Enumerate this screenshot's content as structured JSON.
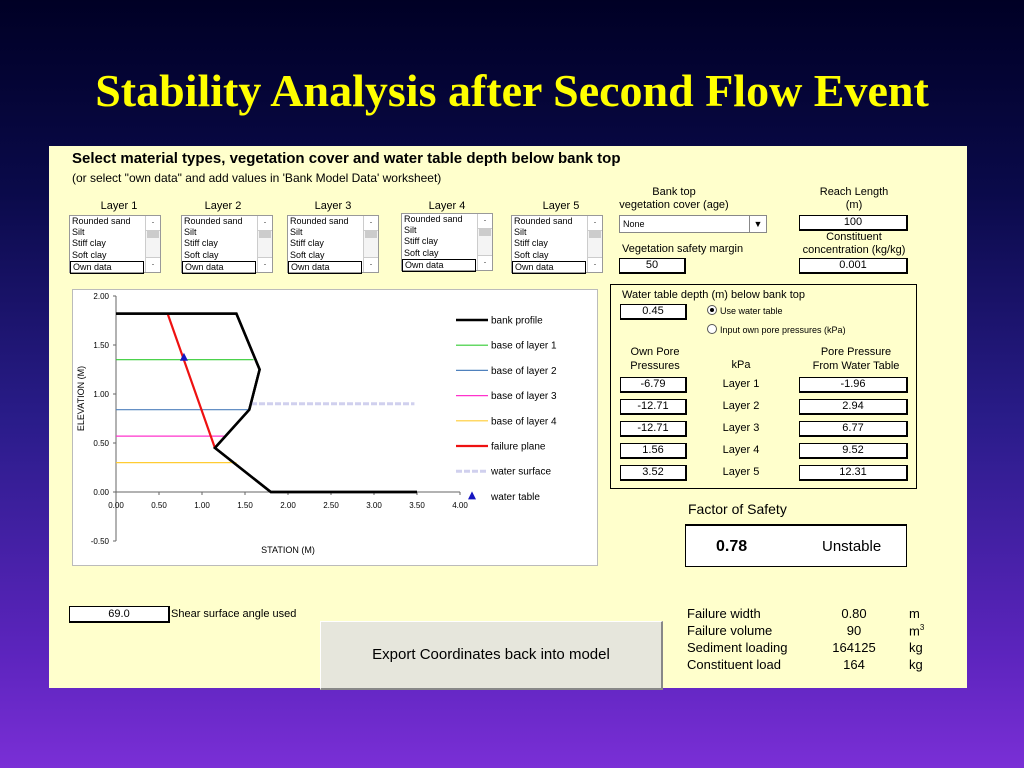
{
  "title": "Stability Analysis after Second Flow Event",
  "instructions": {
    "heading": "Select material types, vegetation cover and water table depth below bank top",
    "subheading": "(or select \"own data\" and add values in 'Bank Model Data' worksheet)"
  },
  "layers": [
    {
      "label": "Layer 1",
      "selected": "Own data"
    },
    {
      "label": "Layer 2",
      "selected": "Own data"
    },
    {
      "label": "Layer 3",
      "selected": "Own data"
    },
    {
      "label": "Layer 4",
      "selected": "Own data"
    },
    {
      "label": "Layer 5",
      "selected": "Own data"
    }
  ],
  "material_options": [
    "Rounded sand",
    "Silt",
    "Stiff clay",
    "Soft clay"
  ],
  "vegetation": {
    "label_line1": "Bank top",
    "label_line2": "vegetation cover (age)",
    "value": "None",
    "margin_label": "Vegetation safety margin",
    "margin_value": "50"
  },
  "reach": {
    "label_line1": "Reach Length",
    "label_line2": "(m)",
    "value": "100",
    "constituent_line1": "Constituent",
    "constituent_line2": "concentration (kg/kg)",
    "constituent_value": "0.001"
  },
  "water_table": {
    "heading": "Water table depth (m) below bank top",
    "value": "0.45",
    "option_use": "Use water table",
    "option_input": "Input own pore pressures (kPa)",
    "col_own_line1": "Own Pore",
    "col_own_line2": "Pressures",
    "col_kpa": "kPa",
    "col_wt_line1": "Pore Pressure",
    "col_wt_line2": "From Water Table",
    "rows": [
      {
        "own": "-6.79",
        "layer": "Layer 1",
        "wt": "-1.96"
      },
      {
        "own": "-12.71",
        "layer": "Layer 2",
        "wt": "2.94"
      },
      {
        "own": "-12.71",
        "layer": "Layer 3",
        "wt": "6.77"
      },
      {
        "own": "1.56",
        "layer": "Layer 4",
        "wt": "9.52"
      },
      {
        "own": "3.52",
        "layer": "Layer 5",
        "wt": "12.31"
      }
    ]
  },
  "factor_of_safety": {
    "label": "Factor of Safety",
    "value": "0.78",
    "status": "Unstable"
  },
  "shear": {
    "value": "69.0",
    "label": "Shear surface angle used"
  },
  "export_button": "Export Coordinates back into model",
  "results": [
    {
      "label": "Failure width",
      "value": "0.80",
      "unit": "m"
    },
    {
      "label": "Failure volume",
      "value": "90",
      "unit": "m",
      "sup": "3"
    },
    {
      "label": "Sediment loading",
      "value": "164125",
      "unit": "kg"
    },
    {
      "label": "Constituent load",
      "value": "164",
      "unit": "kg"
    }
  ],
  "colors": {
    "title": "#ffff00",
    "sheet": "#ffffcc",
    "bank_profile": "#000000",
    "layer1": "#33cc33",
    "layer2": "#4f81bd",
    "layer3": "#ff33cc",
    "layer4": "#ffcc33",
    "failure_plane": "#ee1111",
    "water_surface": "#d0d0ee",
    "water_table": "#1515c0"
  },
  "chart_data": {
    "type": "line",
    "xlabel": "STATION (M)",
    "ylabel": "ELEVATION (M)",
    "xlim": [
      0,
      4
    ],
    "ylim": [
      -0.5,
      2
    ],
    "xticks": [
      "0.00",
      "0.50",
      "1.00",
      "1.50",
      "2.00",
      "2.50",
      "3.00",
      "3.50",
      "4.00"
    ],
    "yticks": [
      "2.00",
      "1.50",
      "1.00",
      "0.50",
      "0.00",
      "-0.50"
    ],
    "series": [
      {
        "name": "bank profile",
        "x": [
          0.0,
          1.4,
          1.67,
          1.55,
          1.15,
          1.8,
          3.5
        ],
        "y": [
          1.82,
          1.82,
          1.25,
          0.84,
          0.45,
          0.0,
          0.0
        ]
      },
      {
        "name": "base of layer 1",
        "x": [
          0.0,
          1.6
        ],
        "y": [
          1.35,
          1.35
        ]
      },
      {
        "name": "base of layer 2",
        "x": [
          0.0,
          1.55
        ],
        "y": [
          0.84,
          0.84
        ]
      },
      {
        "name": "base of layer 3",
        "x": [
          0.0,
          1.26
        ],
        "y": [
          0.57,
          0.57
        ]
      },
      {
        "name": "base of layer 4",
        "x": [
          0.0,
          1.4
        ],
        "y": [
          0.3,
          0.3
        ]
      },
      {
        "name": "failure plane",
        "x": [
          0.6,
          1.15
        ],
        "y": [
          1.82,
          0.45
        ]
      },
      {
        "name": "water surface",
        "x": [
          1.57,
          3.47
        ],
        "y": [
          0.9,
          0.9
        ]
      },
      {
        "name": "water table",
        "x": [
          0.79
        ],
        "y": [
          1.37
        ]
      }
    ]
  }
}
